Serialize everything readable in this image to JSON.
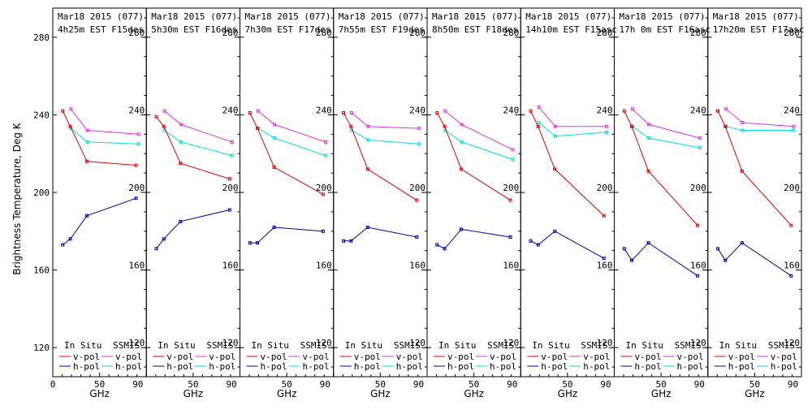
{
  "ylabel": "Brightness Temperature, Deg K",
  "xlabel": "GHz",
  "legend": {
    "insitu_header": "In Situ",
    "ssmis_header": "SSMIS",
    "vpol": "v-pol",
    "hpol": "h-pol"
  },
  "colors": {
    "insitu_v": "#dd0000",
    "insitu_h": "#0000aa",
    "ssmis_v": "#dd33dd",
    "ssmis_h": "#00dddd",
    "frame": "#000000"
  },
  "chart_data": {
    "type": "line",
    "xlim": [
      0,
      100
    ],
    "ylim": [
      105,
      295
    ],
    "yticks": [
      120,
      160,
      200,
      240,
      280
    ],
    "xticks": [
      0,
      10,
      20,
      30,
      40,
      50,
      60,
      70,
      80,
      90
    ],
    "xtick_labels": [
      "0",
      "50",
      "90"
    ],
    "grid": false,
    "legend_position": "bottom",
    "panels": [
      {
        "title": "Mar18 2015 (077)",
        "subtitle": "4h25m EST F15des",
        "insitu_v": {
          "x": [
            10.65,
            18.7,
            36.5,
            89
          ],
          "y": [
            242,
            234,
            216,
            214
          ]
        },
        "insitu_h": {
          "x": [
            10.65,
            18.7,
            36.5,
            89
          ],
          "y": [
            173,
            176,
            188,
            197
          ]
        },
        "ssmis_v": {
          "x": [
            19.35,
            37,
            91.655
          ],
          "y": [
            243,
            232,
            230
          ]
        },
        "ssmis_h": {
          "x": [
            19.35,
            37,
            91.655
          ],
          "y": [
            233,
            226,
            225
          ]
        }
      },
      {
        "title": "Mar18 2015 (077)",
        "subtitle": "5h30m EST F16des",
        "insitu_v": {
          "x": [
            10.65,
            18.7,
            36.5,
            89
          ],
          "y": [
            239,
            234,
            215,
            207
          ]
        },
        "insitu_h": {
          "x": [
            10.65,
            18.7,
            36.5,
            89
          ],
          "y": [
            171,
            176,
            185,
            191
          ]
        },
        "ssmis_v": {
          "x": [
            19.35,
            37,
            91.655
          ],
          "y": [
            242,
            235,
            226
          ]
        },
        "ssmis_h": {
          "x": [
            19.35,
            37,
            91.655
          ],
          "y": [
            232,
            226,
            219
          ]
        }
      },
      {
        "title": "Mar18 2015 (077)",
        "subtitle": "7h30m EST F17des",
        "insitu_v": {
          "x": [
            10.65,
            18.7,
            36.5,
            89
          ],
          "y": [
            241,
            233,
            213,
            199
          ]
        },
        "insitu_h": {
          "x": [
            10.65,
            18.7,
            36.5,
            89
          ],
          "y": [
            174,
            174,
            182,
            180
          ]
        },
        "ssmis_v": {
          "x": [
            19.35,
            37,
            91.655
          ],
          "y": [
            242,
            235,
            226
          ]
        },
        "ssmis_h": {
          "x": [
            19.35,
            37,
            91.655
          ],
          "y": [
            233,
            228,
            219
          ]
        }
      },
      {
        "title": "Mar18 2015 (077)",
        "subtitle": "7h55m EST F19des",
        "insitu_v": {
          "x": [
            10.65,
            18.7,
            36.5,
            89
          ],
          "y": [
            241,
            234,
            212,
            196
          ]
        },
        "insitu_h": {
          "x": [
            10.65,
            18.7,
            36.5,
            89
          ],
          "y": [
            175,
            175,
            182,
            177
          ]
        },
        "ssmis_v": {
          "x": [
            19.35,
            37,
            91.655
          ],
          "y": [
            241,
            234,
            233
          ]
        },
        "ssmis_h": {
          "x": [
            19.35,
            37,
            91.655
          ],
          "y": [
            232,
            227,
            225
          ]
        }
      },
      {
        "title": "Mar18 2015 (077)",
        "subtitle": "8h50m EST F18des",
        "insitu_v": {
          "x": [
            10.65,
            18.7,
            36.5,
            89
          ],
          "y": [
            241,
            234,
            212,
            196
          ]
        },
        "insitu_h": {
          "x": [
            10.65,
            18.7,
            36.5,
            89
          ],
          "y": [
            173,
            171,
            181,
            177
          ]
        },
        "ssmis_v": {
          "x": [
            19.35,
            37,
            91.655
          ],
          "y": [
            242,
            235,
            222
          ]
        },
        "ssmis_h": {
          "x": [
            19.35,
            37,
            91.655
          ],
          "y": [
            232,
            226,
            217
          ]
        }
      },
      {
        "title": "Mar18 2015 (077)",
        "subtitle": "14h10m EST F15asc",
        "insitu_v": {
          "x": [
            10.65,
            18.7,
            36.5,
            89
          ],
          "y": [
            242,
            234,
            212,
            188
          ]
        },
        "insitu_h": {
          "x": [
            10.65,
            18.7,
            36.5,
            89
          ],
          "y": [
            175,
            173,
            180,
            166
          ]
        },
        "ssmis_v": {
          "x": [
            19.35,
            37,
            91.655
          ],
          "y": [
            244,
            234,
            234
          ]
        },
        "ssmis_h": {
          "x": [
            19.35,
            37,
            91.655
          ],
          "y": [
            236,
            229,
            231
          ]
        }
      },
      {
        "title": "Mar18 2015 (077)",
        "subtitle": "17h 0m EST F16asc",
        "insitu_v": {
          "x": [
            10.65,
            18.7,
            36.5,
            89
          ],
          "y": [
            242,
            234,
            211,
            183
          ]
        },
        "insitu_h": {
          "x": [
            10.65,
            18.7,
            36.5,
            89
          ],
          "y": [
            171,
            165,
            174,
            157
          ]
        },
        "ssmis_v": {
          "x": [
            19.35,
            37,
            91.655
          ],
          "y": [
            243,
            235,
            228
          ]
        },
        "ssmis_h": {
          "x": [
            19.35,
            37,
            91.655
          ],
          "y": [
            234,
            228,
            223
          ]
        }
      },
      {
        "title": "Mar18 2015 (077)",
        "subtitle": "17h20m EST F17asc",
        "insitu_v": {
          "x": [
            10.65,
            18.7,
            36.5,
            89
          ],
          "y": [
            242,
            234,
            211,
            183
          ]
        },
        "insitu_h": {
          "x": [
            10.65,
            18.7,
            36.5,
            89
          ],
          "y": [
            171,
            165,
            174,
            157
          ]
        },
        "ssmis_v": {
          "x": [
            19.35,
            37,
            91.655
          ],
          "y": [
            243,
            236,
            234
          ]
        },
        "ssmis_h": {
          "x": [
            19.35,
            37,
            91.655
          ],
          "y": [
            234,
            232,
            232
          ]
        }
      }
    ]
  }
}
